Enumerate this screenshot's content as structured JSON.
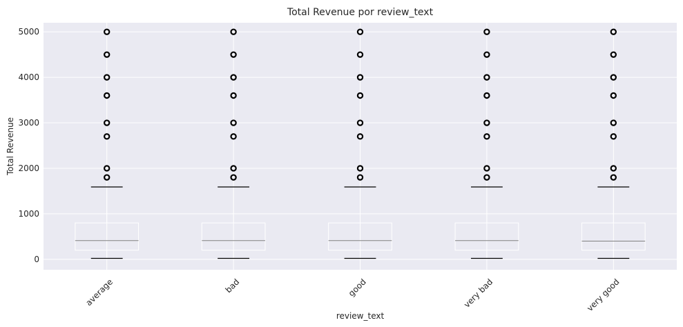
{
  "chart_data": {
    "type": "box",
    "title": "Total Revenue por review_text",
    "xlabel": "review_text",
    "ylabel": "Total Revenue",
    "ylim": [
      -230,
      5200
    ],
    "yticks": [
      0,
      1000,
      2000,
      3000,
      4000,
      5000
    ],
    "grid": true,
    "categories": [
      "average",
      "bad",
      "good",
      "very bad",
      "very good"
    ],
    "boxes": [
      {
        "whisker_low": 20,
        "q1": 200,
        "median": 410,
        "q3": 800,
        "whisker_high": 1590,
        "outliers": [
          1800,
          2000,
          2700,
          3000,
          3600,
          4000,
          4500,
          5000
        ]
      },
      {
        "whisker_low": 20,
        "q1": 200,
        "median": 410,
        "q3": 800,
        "whisker_high": 1590,
        "outliers": [
          1800,
          2000,
          2700,
          3000,
          3600,
          4000,
          4500,
          5000
        ]
      },
      {
        "whisker_low": 20,
        "q1": 200,
        "median": 410,
        "q3": 800,
        "whisker_high": 1590,
        "outliers": [
          1800,
          2000,
          2700,
          3000,
          3600,
          4000,
          4500,
          5000
        ]
      },
      {
        "whisker_low": 20,
        "q1": 200,
        "median": 410,
        "q3": 800,
        "whisker_high": 1590,
        "outliers": [
          1800,
          2000,
          2700,
          3000,
          3600,
          4000,
          4500,
          5000
        ]
      },
      {
        "whisker_low": 20,
        "q1": 200,
        "median": 400,
        "q3": 800,
        "whisker_high": 1590,
        "outliers": [
          1800,
          2000,
          2700,
          3000,
          3600,
          4000,
          4500,
          5000
        ]
      }
    ],
    "colors": {
      "plot_background": "#eaeaf2",
      "grid": "#ffffff",
      "box_edge": "#ffffff",
      "median": "#808080",
      "whisker_cap": "#000000",
      "outlier": "#000000"
    }
  }
}
